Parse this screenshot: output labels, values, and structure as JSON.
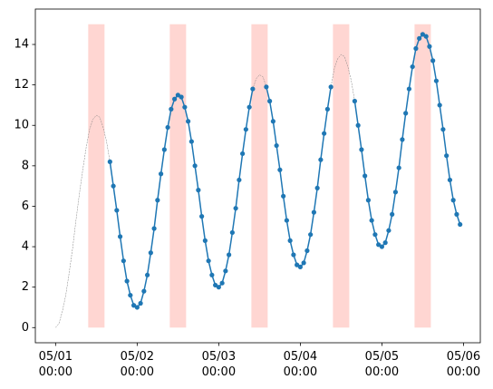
{
  "chart_data": {
    "type": "line",
    "x": [
      "05/01 00:00",
      "05/01 01:00",
      "05/01 02:00",
      "05/01 03:00",
      "05/01 04:00",
      "05/01 05:00",
      "05/01 06:00",
      "05/01 07:00",
      "05/01 08:00",
      "05/01 09:00",
      "05/01 10:00",
      "05/01 11:00",
      "05/01 12:00",
      "05/01 13:00",
      "05/01 14:00",
      "05/01 15:00",
      "05/01 16:00",
      "05/01 17:00",
      "05/01 18:00",
      "05/01 19:00",
      "05/01 20:00",
      "05/01 21:00",
      "05/01 22:00",
      "05/01 23:00",
      "05/02 00:00",
      "05/02 01:00",
      "05/02 02:00",
      "05/02 03:00",
      "05/02 04:00",
      "05/02 05:00",
      "05/02 06:00",
      "05/02 07:00",
      "05/02 08:00",
      "05/02 09:00",
      "05/02 10:00",
      "05/02 11:00",
      "05/02 12:00",
      "05/02 13:00",
      "05/02 14:00",
      "05/02 15:00",
      "05/02 16:00",
      "05/02 17:00",
      "05/02 18:00",
      "05/02 19:00",
      "05/02 20:00",
      "05/02 21:00",
      "05/02 22:00",
      "05/02 23:00",
      "05/03 00:00",
      "05/03 01:00",
      "05/03 02:00",
      "05/03 03:00",
      "05/03 04:00",
      "05/03 05:00",
      "05/03 06:00",
      "05/03 07:00",
      "05/03 08:00",
      "05/03 09:00",
      "05/03 10:00",
      "05/03 11:00",
      "05/03 12:00",
      "05/03 13:00",
      "05/03 14:00",
      "05/03 15:00",
      "05/03 16:00",
      "05/03 17:00",
      "05/03 18:00",
      "05/03 19:00",
      "05/03 20:00",
      "05/03 21:00",
      "05/03 22:00",
      "05/03 23:00",
      "05/04 00:00",
      "05/04 01:00",
      "05/04 02:00",
      "05/04 03:00",
      "05/04 04:00",
      "05/04 05:00",
      "05/04 06:00",
      "05/04 07:00",
      "05/04 08:00",
      "05/04 09:00",
      "05/04 10:00",
      "05/04 11:00",
      "05/04 12:00",
      "05/04 13:00",
      "05/04 14:00",
      "05/04 15:00",
      "05/04 16:00",
      "05/04 17:00",
      "05/04 18:00",
      "05/04 19:00",
      "05/04 20:00",
      "05/04 21:00",
      "05/04 22:00",
      "05/04 23:00",
      "05/05 00:00",
      "05/05 01:00",
      "05/05 02:00",
      "05/05 03:00",
      "05/05 04:00",
      "05/05 05:00",
      "05/05 06:00",
      "05/05 07:00",
      "05/05 08:00",
      "05/05 09:00",
      "05/05 10:00",
      "05/05 11:00",
      "05/05 12:00",
      "05/05 13:00",
      "05/05 14:00",
      "05/05 15:00",
      "05/05 16:00",
      "05/05 17:00",
      "05/05 18:00",
      "05/05 19:00",
      "05/05 20:00",
      "05/05 21:00",
      "05/05 22:00",
      "05/05 23:00"
    ],
    "series": [
      {
        "color": "#808080",
        "linestyle": "dashed",
        "linewidth": 0.5,
        "values": [
          0,
          0.2,
          0.8,
          1.6,
          2.7,
          3.9,
          5.3,
          6.6,
          7.8,
          8.9,
          9.8,
          10.3,
          10.5,
          10.4,
          9.9,
          9.2,
          8.2,
          7.0,
          5.8,
          4.5,
          3.3,
          2.3,
          1.6,
          1.1,
          1,
          1.2,
          1.8,
          2.6,
          3.7,
          4.9,
          6.3,
          7.6,
          8.8,
          9.9,
          10.8,
          11.3,
          11.5,
          11.4,
          10.9,
          10.2,
          9.2,
          8.0,
          6.8,
          5.5,
          4.3,
          3.3,
          2.6,
          2.1,
          2,
          2.2,
          2.8,
          3.6,
          4.7,
          5.9,
          7.3,
          8.6,
          9.8,
          10.9,
          11.8,
          12.3,
          12.5,
          12.4,
          11.9,
          11.2,
          10.2,
          9.0,
          7.8,
          6.5,
          5.3,
          4.3,
          3.6,
          3.1,
          3,
          3.2,
          3.8,
          4.6,
          5.7,
          6.9,
          8.3,
          9.6,
          10.8,
          11.9,
          12.8,
          13.3,
          13.5,
          13.4,
          12.9,
          12.2,
          11.2,
          10.0,
          8.8,
          7.5,
          6.3,
          5.3,
          4.6,
          4.1,
          4,
          4.2,
          4.8,
          5.6,
          6.7,
          7.9,
          9.3,
          10.6,
          11.8,
          12.9,
          13.8,
          14.3,
          14.5,
          14.4,
          13.9,
          13.2,
          12.2,
          11.0,
          9.8,
          8.5,
          7.3,
          6.3,
          5.6,
          5.1
        ]
      },
      {
        "color": "#1f77b4",
        "linestyle": "solid",
        "linewidth": 1.5,
        "marker": "o",
        "values": [
          null,
          null,
          null,
          null,
          null,
          null,
          null,
          null,
          null,
          null,
          null,
          null,
          null,
          null,
          null,
          null,
          8.2,
          7.0,
          5.8,
          4.5,
          3.3,
          2.3,
          1.6,
          1.1,
          1,
          1.2,
          1.8,
          2.6,
          3.7,
          4.9,
          6.3,
          7.6,
          8.8,
          9.9,
          10.8,
          11.3,
          11.5,
          11.4,
          10.9,
          10.2,
          9.2,
          8.0,
          6.8,
          5.5,
          4.3,
          3.3,
          2.6,
          2.1,
          2,
          2.2,
          2.8,
          3.6,
          4.7,
          5.9,
          7.3,
          8.6,
          9.8,
          10.9,
          11.8,
          null,
          null,
          null,
          11.9,
          11.2,
          10.2,
          9.0,
          7.8,
          6.5,
          5.3,
          4.3,
          3.6,
          3.1,
          3,
          3.2,
          3.8,
          4.6,
          5.7,
          6.9,
          8.3,
          9.6,
          10.8,
          11.9,
          null,
          null,
          null,
          null,
          null,
          null,
          11.2,
          10.0,
          8.8,
          7.5,
          6.3,
          5.3,
          4.6,
          4.1,
          4,
          4.2,
          4.8,
          5.6,
          6.7,
          7.9,
          9.3,
          10.6,
          11.8,
          12.9,
          13.8,
          14.3,
          14.5,
          14.4,
          13.9,
          13.2,
          12.2,
          11.0,
          9.8,
          8.5,
          7.3,
          6.3,
          5.6,
          5.1
        ]
      }
    ],
    "spans": [
      {
        "start": "05/01 09:36",
        "end": "05/01 14:24",
        "y": [
          0,
          15
        ]
      },
      {
        "start": "05/02 09:36",
        "end": "05/02 14:24",
        "y": [
          0,
          15
        ]
      },
      {
        "start": "05/03 09:36",
        "end": "05/03 14:24",
        "y": [
          0,
          15
        ]
      },
      {
        "start": "05/04 09:36",
        "end": "05/04 14:24",
        "y": [
          0,
          15
        ]
      },
      {
        "start": "05/05 09:36",
        "end": "05/05 14:24",
        "y": [
          0,
          15
        ]
      }
    ],
    "span_color": "#ffd6d2",
    "xlim": [
      "04/30 18:03",
      "05/06 04:57"
    ],
    "xticks": [
      {
        "value": "05/01 00:00",
        "label": "05/01\n00:00"
      },
      {
        "value": "05/02 00:00",
        "label": "05/02\n00:00"
      },
      {
        "value": "05/03 00:00",
        "label": "05/03\n00:00"
      },
      {
        "value": "05/04 00:00",
        "label": "05/04\n00:00"
      },
      {
        "value": "05/05 00:00",
        "label": "05/05\n00:00"
      },
      {
        "value": "05/06 00:00",
        "label": "05/06\n00:00"
      }
    ],
    "ylim": [
      -0.75,
      15.75
    ],
    "yticks": [
      0,
      2,
      4,
      6,
      8,
      10,
      12,
      14
    ],
    "grid": false
  }
}
